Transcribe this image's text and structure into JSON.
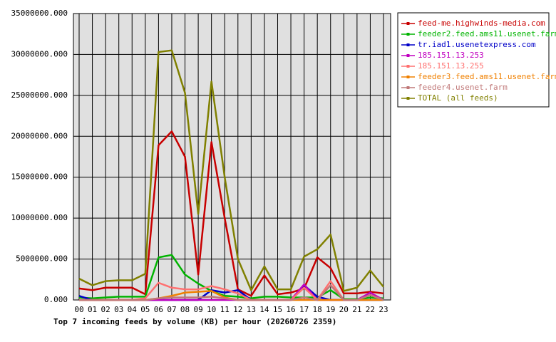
{
  "chart_data": {
    "type": "line",
    "title": "Top 7 incoming feeds by volume (KB) per hour (20260726 2359)",
    "categories": [
      "00",
      "01",
      "02",
      "03",
      "04",
      "05",
      "06",
      "07",
      "08",
      "09",
      "10",
      "11",
      "12",
      "13",
      "14",
      "15",
      "16",
      "17",
      "18",
      "19",
      "20",
      "21",
      "22",
      "23"
    ],
    "series": [
      {
        "name": "feed-me.highwinds-media.com",
        "color": "#c80000",
        "values": [
          1400000,
          1200000,
          1500000,
          1500000,
          1500000,
          700000,
          18900000,
          20600000,
          17500000,
          3100000,
          19300000,
          10000000,
          1300000,
          500000,
          3000000,
          700000,
          900000,
          1400000,
          5200000,
          3900000,
          800000,
          800000,
          1000000,
          800000
        ]
      },
      {
        "name": "feeder2.feed.ams11.usenet.farm",
        "color": "#00b400",
        "values": [
          300000,
          200000,
          300000,
          400000,
          400000,
          400000,
          5200000,
          5500000,
          3100000,
          2000000,
          1100000,
          500000,
          400000,
          200000,
          400000,
          400000,
          300000,
          300000,
          300000,
          1200000,
          100000,
          100000,
          300000,
          200000
        ]
      },
      {
        "name": "tr.iad1.usenetexpress.com",
        "color": "#0000c8",
        "values": [
          500000,
          0,
          0,
          0,
          0,
          0,
          0,
          0,
          0,
          0,
          1200000,
          900000,
          1200000,
          0,
          0,
          0,
          0,
          1800000,
          400000,
          0,
          0,
          0,
          0,
          0
        ]
      },
      {
        "name": "185.151.13.253",
        "color": "#c000c0",
        "values": [
          0,
          0,
          0,
          0,
          0,
          0,
          0,
          0,
          0,
          0,
          0,
          0,
          0,
          0,
          0,
          0,
          0,
          1900000,
          0,
          0,
          0,
          0,
          900000,
          0
        ]
      },
      {
        "name": "185.151.13.255",
        "color": "#ff7070",
        "values": [
          0,
          0,
          0,
          0,
          0,
          200000,
          2100000,
          1500000,
          1300000,
          1300000,
          1700000,
          1300000,
          800000,
          0,
          0,
          0,
          0,
          1500000,
          0,
          2300000,
          0,
          0,
          600000,
          0
        ]
      },
      {
        "name": "feeder3.feed.ams11.usenet.farm",
        "color": "#f08000",
        "values": [
          0,
          0,
          0,
          0,
          0,
          0,
          200000,
          500000,
          900000,
          1000000,
          1100000,
          300000,
          0,
          0,
          0,
          0,
          0,
          0,
          0,
          0,
          0,
          0,
          0,
          0
        ]
      },
      {
        "name": "feeder4.usenet.farm",
        "color": "#c07878",
        "values": [
          0,
          0,
          0,
          0,
          0,
          0,
          200000,
          300000,
          300000,
          300000,
          400000,
          200000,
          0,
          0,
          0,
          0,
          0,
          300000,
          0,
          1800000,
          0,
          0,
          600000,
          0
        ]
      },
      {
        "name": "TOTAL (all feeds)",
        "color": "#808000",
        "values": [
          2600000,
          1800000,
          2300000,
          2400000,
          2400000,
          3200000,
          30300000,
          30500000,
          25300000,
          10500000,
          26700000,
          15000000,
          5000000,
          1200000,
          4100000,
          1300000,
          1300000,
          5300000,
          6200000,
          8000000,
          1100000,
          1500000,
          3600000,
          1600000
        ]
      }
    ],
    "ylim": [
      0,
      35000000
    ],
    "yticks": [
      {
        "value": 0,
        "label": "0.000"
      },
      {
        "value": 5000000,
        "label": "5000000.000"
      },
      {
        "value": 10000000,
        "label": "10000000.000"
      },
      {
        "value": 15000000,
        "label": "15000000.000"
      },
      {
        "value": 20000000,
        "label": "20000000.000"
      },
      {
        "value": 25000000,
        "label": "25000000.000"
      },
      {
        "value": 30000000,
        "label": "30000000.000"
      },
      {
        "value": 35000000,
        "label": "35000000.000"
      }
    ],
    "grid": true
  }
}
